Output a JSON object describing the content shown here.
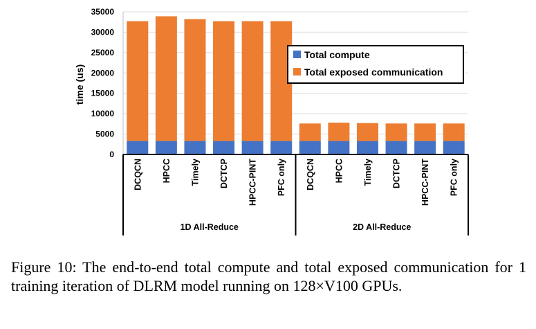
{
  "chart_data": {
    "type": "bar",
    "stacked": true,
    "ylabel": "time (us)",
    "ylim": [
      0,
      35000
    ],
    "yticks": [
      0,
      5000,
      10000,
      15000,
      20000,
      25000,
      30000,
      35000
    ],
    "groups": [
      {
        "label": "1D All-Reduce",
        "categories": [
          "DCQCN",
          "HPCC",
          "Timely",
          "DCTCP",
          "HPCC-PINT",
          "PFC only"
        ]
      },
      {
        "label": "2D All-Reduce",
        "categories": [
          "DCQCN",
          "HPCC",
          "Timely",
          "DCTCP",
          "HPCC-PINT",
          "PFC only"
        ]
      }
    ],
    "series": [
      {
        "name": "Total compute",
        "color": "#4472c4",
        "values": [
          3300,
          3300,
          3300,
          3300,
          3300,
          3300,
          3300,
          3300,
          3300,
          3300,
          3300,
          3300
        ]
      },
      {
        "name": "Total exposed communication",
        "color": "#ed7d31",
        "values": [
          29400,
          30600,
          29900,
          29400,
          29400,
          29400,
          4300,
          4500,
          4400,
          4300,
          4300,
          4300
        ]
      }
    ],
    "legend": "right, inside plot",
    "grid": true
  },
  "caption": "Figure 10: The end-to-end total compute and total exposed communication for 1 training iteration of DLRM model running on 128×V100 GPUs."
}
